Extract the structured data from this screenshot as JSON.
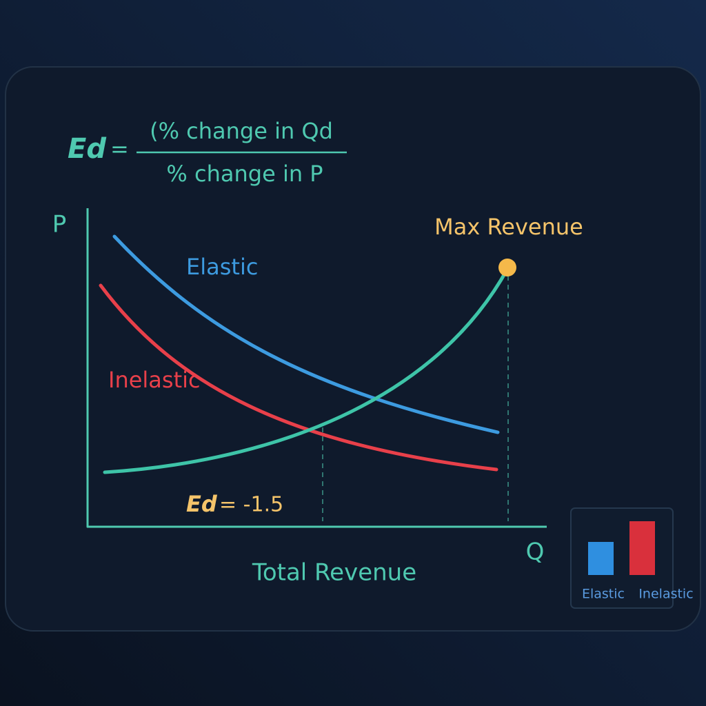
{
  "formula": {
    "lhs": "Ed",
    "equals": "=",
    "numerator": "(% change in Qd",
    "denominator": "% change in P"
  },
  "axes": {
    "y_label": "P",
    "x_label": "Q",
    "caption": "Total Revenue"
  },
  "curves": {
    "elastic": "Elastic",
    "inelastic": "Inelastic",
    "max_revenue": "Max Revenue"
  },
  "annotation": {
    "var": "Ed",
    "rest": "= -1.5"
  },
  "mini_chart": {
    "labels": [
      "Elastic",
      "Inelastic"
    ]
  }
}
